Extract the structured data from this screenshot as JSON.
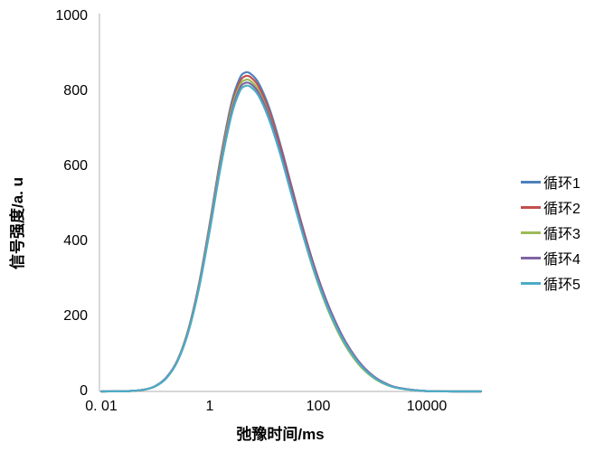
{
  "chart_data": {
    "type": "line",
    "title": "",
    "legend_position": "right",
    "x_axis": {
      "label": "弛豫时间/ms",
      "scale": "log",
      "min": 0.01,
      "max": 100000,
      "tick_values": [
        0.01,
        1,
        100,
        10000
      ],
      "tick_labels": [
        "0. 01",
        "1",
        "100",
        "10000"
      ]
    },
    "y_axis": {
      "label": "信号强度/a. u",
      "min": 0,
      "max": 1000,
      "tick_values": [
        1000,
        800,
        600,
        400,
        200,
        0
      ],
      "tick_labels": [
        "1000",
        "800",
        "600",
        "400",
        "200",
        "0"
      ]
    },
    "axis_color": "#BFBFBF",
    "x": [
      0.01,
      0.0316,
      0.0631,
      0.1,
      0.158,
      0.251,
      0.398,
      0.631,
      1,
      1.58,
      2.51,
      3.55,
      4.47,
      5.62,
      7.94,
      12.6,
      20,
      31.6,
      50.1,
      79.4,
      126,
      200,
      316,
      562,
      1000,
      1778,
      3162,
      10000,
      31623,
      100000
    ],
    "series": [
      {
        "name": "循环1",
        "color": "#4F81BD",
        "peak_value": 850,
        "peak_x_ms": 4.5,
        "values": [
          0,
          1,
          5,
          15,
          37,
          82,
          163,
          286,
          448,
          622,
          769,
          834,
          850,
          847,
          822,
          754,
          658,
          551,
          444,
          346,
          261,
          190,
          132,
          78,
          42,
          20,
          9,
          1,
          0,
          0
        ]
      },
      {
        "name": "循环2",
        "color": "#C0504D",
        "peak_value": 840,
        "peak_x_ms": 4.5,
        "values": [
          0,
          1,
          5,
          14,
          36,
          81,
          161,
          283,
          443,
          615,
          760,
          824,
          840,
          838,
          813,
          746,
          652,
          547,
          442,
          345,
          261,
          190,
          133,
          79,
          42,
          20,
          9,
          1,
          0,
          0
        ]
      },
      {
        "name": "循环3",
        "color": "#9BBB59",
        "peak_value": 830,
        "peak_x_ms": 4.5,
        "values": [
          0,
          1,
          5,
          14,
          36,
          80,
          159,
          280,
          438,
          609,
          752,
          815,
          830,
          828,
          802,
          734,
          639,
          532,
          426,
          329,
          246,
          177,
          122,
          71,
          38,
          18,
          8,
          1,
          0,
          0
        ]
      },
      {
        "name": "循环4",
        "color": "#8064A2",
        "peak_value": 822,
        "peak_x_ms": 4.5,
        "values": [
          0,
          1,
          5,
          14,
          36,
          79,
          157,
          277,
          433,
          602,
          743,
          807,
          822,
          820,
          796,
          731,
          641,
          538,
          436,
          342,
          260,
          190,
          133,
          79,
          43,
          21,
          9,
          1,
          0,
          0
        ]
      },
      {
        "name": "循环5",
        "color": "#4BACC6",
        "peak_value": 814,
        "peak_x_ms": 4.5,
        "values": [
          0,
          1,
          5,
          14,
          35,
          79,
          156,
          274,
          429,
          596,
          736,
          799,
          814,
          812,
          788,
          722,
          631,
          528,
          426,
          332,
          250,
          182,
          127,
          75,
          40,
          19,
          8,
          1,
          0,
          0
        ]
      }
    ]
  }
}
